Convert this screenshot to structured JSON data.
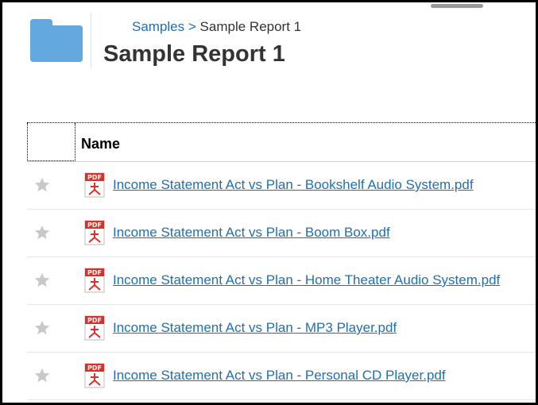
{
  "header": {
    "breadcrumb": {
      "parent": "Samples",
      "separator": ">",
      "current": "Sample Report 1"
    },
    "title": "Sample Report 1",
    "folder_icon": "folder-icon",
    "folder_color": "#64a8e0"
  },
  "table": {
    "columns": [
      "Name"
    ],
    "rows": [
      {
        "name": "Income Statement Act vs Plan - Bookshelf Audio System.pdf",
        "favorite": false
      },
      {
        "name": "Income Statement Act vs Plan - Boom Box.pdf",
        "favorite": false
      },
      {
        "name": "Income Statement Act vs Plan - Home Theater Audio System.pdf",
        "favorite": false
      },
      {
        "name": "Income Statement Act vs Plan - MP3 Player.pdf",
        "favorite": false
      },
      {
        "name": "Income Statement Act vs Plan - Personal CD Player.pdf",
        "favorite": false
      }
    ]
  },
  "colors": {
    "link": "#1f6fb3",
    "pdf_red": "#d9302c"
  }
}
